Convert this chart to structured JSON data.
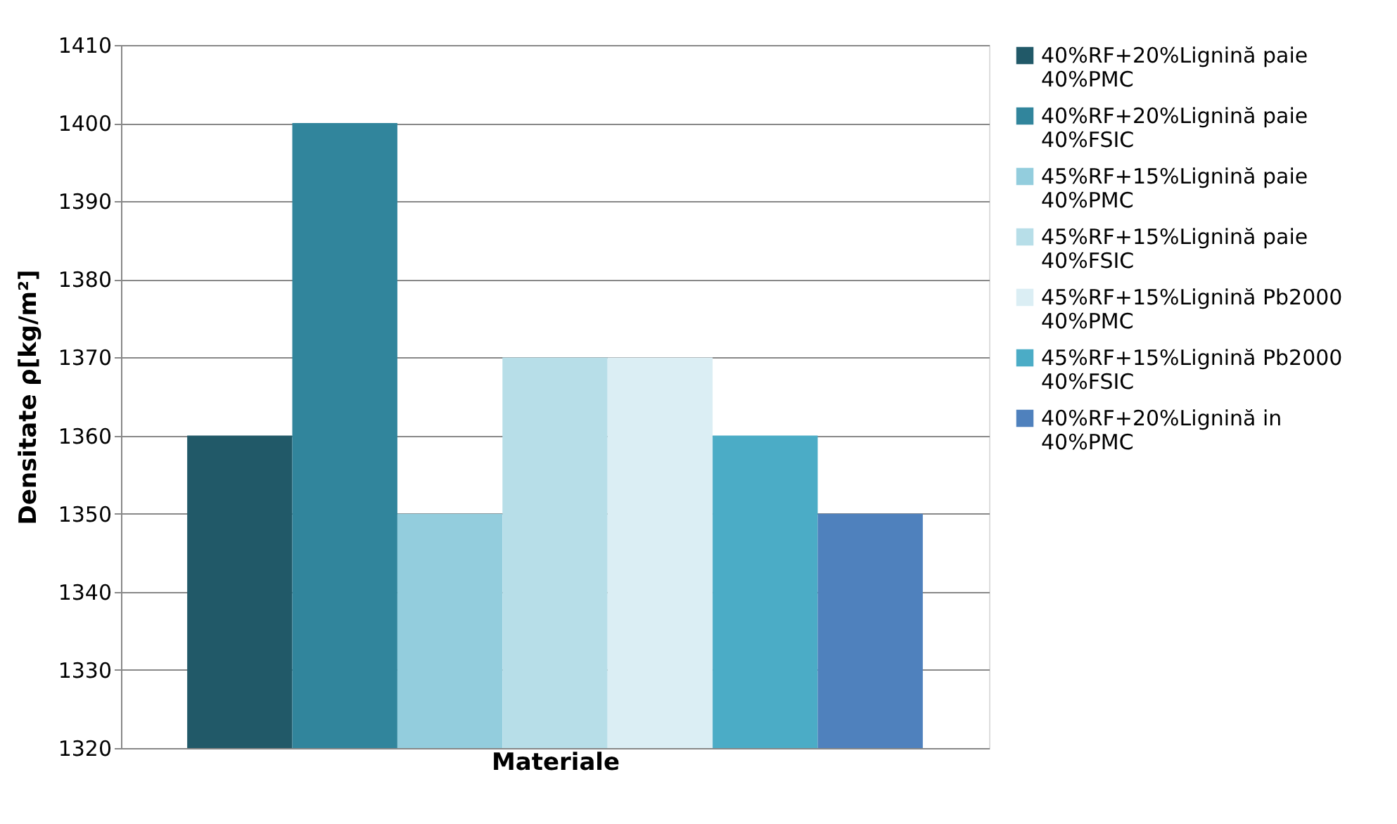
{
  "chart_data": {
    "type": "bar",
    "categories": [
      null
    ],
    "xlabel": "Materiale",
    "ylabel": "Densitate ρ[kg/m²]",
    "ylim": [
      1320,
      1410
    ],
    "yticks": [
      1320,
      1330,
      1340,
      1350,
      1360,
      1370,
      1380,
      1390,
      1400,
      1410
    ],
    "grid": "y",
    "legend": "right",
    "series": [
      {
        "name": "40%RF+20%Lignină paie 40%PMC",
        "color": "#215968",
        "values": [
          1360
        ]
      },
      {
        "name": "40%RF+20%Lignină paie 40%FSIC",
        "color": "#31859c",
        "values": [
          1400
        ]
      },
      {
        "name": "45%RF+15%Lignină paie 40%PMC",
        "color": "#93cddd",
        "values": [
          1350
        ]
      },
      {
        "name": "45%RF+15%Lignină paie 40%FSIC",
        "color": "#b7dee8",
        "values": [
          1370
        ]
      },
      {
        "name": "45%RF+15%Lignină Pb2000 40%PMC",
        "color": "#dbeef4",
        "values": [
          1370
        ]
      },
      {
        "name": "45%RF+15%Lignină Pb2000 40%FSIC",
        "color": "#4bacc6",
        "values": [
          1360
        ]
      },
      {
        "name": "40%RF+20%Lignină in 40%PMC",
        "color": "#4f81bd",
        "values": [
          1350
        ]
      }
    ]
  }
}
